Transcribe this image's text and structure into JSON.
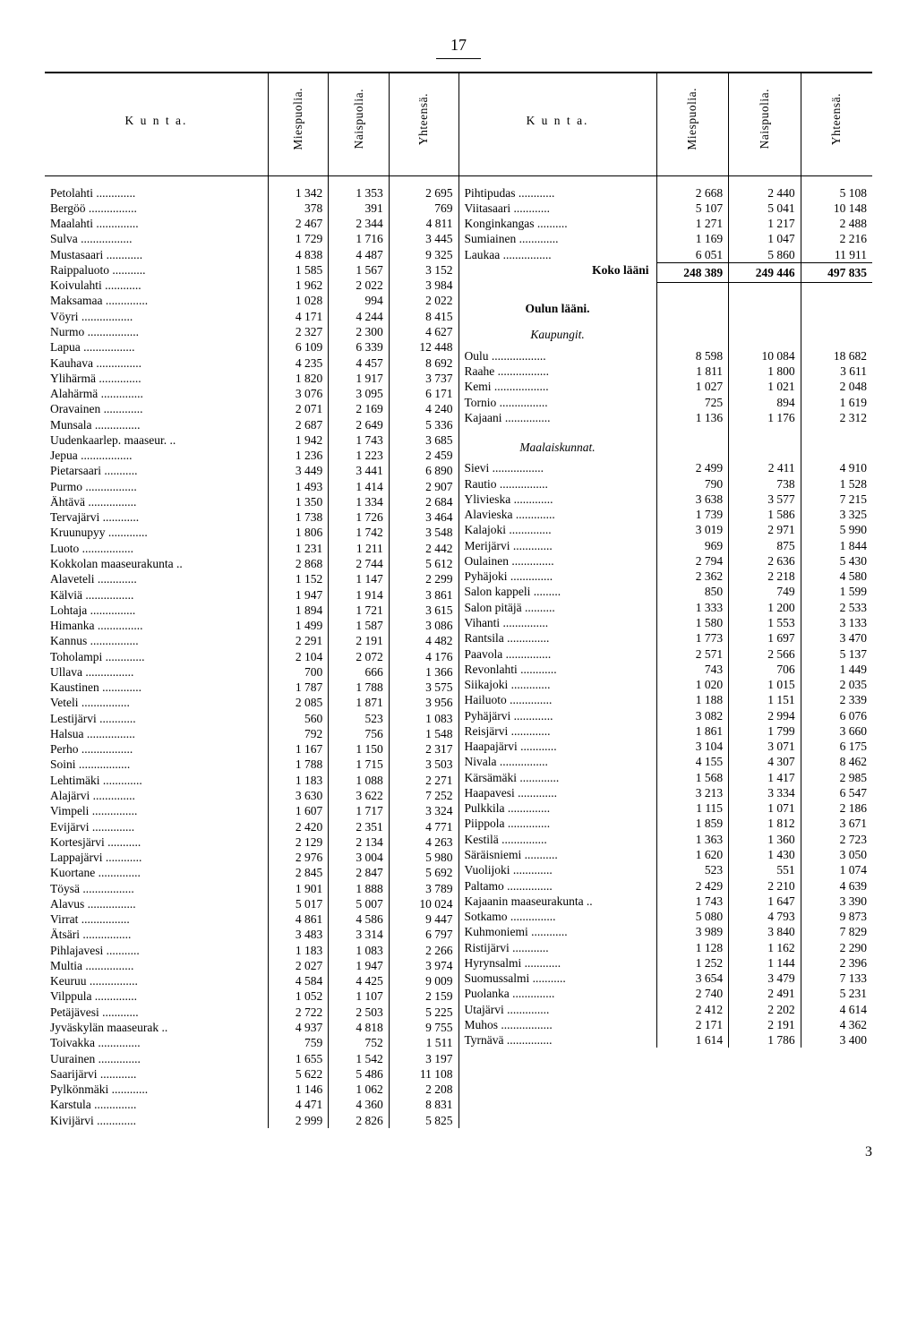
{
  "page_number": "17",
  "footer_number": "3",
  "headers": {
    "kunta": "K u n t a.",
    "mies": "Miespuolia.",
    "nais": "Naispuolia.",
    "yht": "Yhteensä."
  },
  "labels": {
    "koko_laani": "Koko lääni",
    "oulun_laani": "Oulun lääni.",
    "kaupungit": "Kaupungit.",
    "maalaiskunnat": "Maalaiskunnat."
  },
  "left": [
    {
      "n": "Petolahti",
      "m": "1 342",
      "f": "1 353",
      "t": "2 695"
    },
    {
      "n": "Bergöö",
      "m": "378",
      "f": "391",
      "t": "769"
    },
    {
      "n": "Maalahti",
      "m": "2 467",
      "f": "2 344",
      "t": "4 811"
    },
    {
      "n": "Sulva",
      "m": "1 729",
      "f": "1 716",
      "t": "3 445"
    },
    {
      "n": "Mustasaari",
      "m": "4 838",
      "f": "4 487",
      "t": "9 325"
    },
    {
      "n": "Raippaluoto",
      "m": "1 585",
      "f": "1 567",
      "t": "3 152"
    },
    {
      "n": "Koivulahti",
      "m": "1 962",
      "f": "2 022",
      "t": "3 984"
    },
    {
      "n": "Maksamaa",
      "m": "1 028",
      "f": "994",
      "t": "2 022"
    },
    {
      "n": "Vöyri",
      "m": "4 171",
      "f": "4 244",
      "t": "8 415"
    },
    {
      "n": "Nurmo",
      "m": "2 327",
      "f": "2 300",
      "t": "4 627"
    },
    {
      "n": "Lapua",
      "m": "6 109",
      "f": "6 339",
      "t": "12 448"
    },
    {
      "n": "Kauhava",
      "m": "4 235",
      "f": "4 457",
      "t": "8 692"
    },
    {
      "n": "Ylihärmä",
      "m": "1 820",
      "f": "1 917",
      "t": "3 737"
    },
    {
      "n": "Alahärmä",
      "m": "3 076",
      "f": "3 095",
      "t": "6 171"
    },
    {
      "n": "Oravainen",
      "m": "2 071",
      "f": "2 169",
      "t": "4 240"
    },
    {
      "n": "Munsala",
      "m": "2 687",
      "f": "2 649",
      "t": "5 336"
    },
    {
      "n": "Uudenkaarlep. maaseur.",
      "m": "1 942",
      "f": "1 743",
      "t": "3 685"
    },
    {
      "n": "Jepua",
      "m": "1 236",
      "f": "1 223",
      "t": "2 459"
    },
    {
      "n": "Pietarsaari",
      "m": "3 449",
      "f": "3 441",
      "t": "6 890"
    },
    {
      "n": "Purmo",
      "m": "1 493",
      "f": "1 414",
      "t": "2 907"
    },
    {
      "n": "Ähtävä",
      "m": "1 350",
      "f": "1 334",
      "t": "2 684"
    },
    {
      "n": "Tervajärvi",
      "m": "1 738",
      "f": "1 726",
      "t": "3 464"
    },
    {
      "n": "Kruunupyy",
      "m": "1 806",
      "f": "1 742",
      "t": "3 548"
    },
    {
      "n": "Luoto",
      "m": "1 231",
      "f": "1 211",
      "t": "2 442"
    },
    {
      "n": "Kokkolan maaseurakunta",
      "m": "2 868",
      "f": "2 744",
      "t": "5 612"
    },
    {
      "n": "Alaveteli",
      "m": "1 152",
      "f": "1 147",
      "t": "2 299"
    },
    {
      "n": "Kälviä",
      "m": "1 947",
      "f": "1 914",
      "t": "3 861"
    },
    {
      "n": "Lohtaja",
      "m": "1 894",
      "f": "1 721",
      "t": "3 615"
    },
    {
      "n": "Himanka",
      "m": "1 499",
      "f": "1 587",
      "t": "3 086"
    },
    {
      "n": "Kannus",
      "m": "2 291",
      "f": "2 191",
      "t": "4 482"
    },
    {
      "n": "Toholampi",
      "m": "2 104",
      "f": "2 072",
      "t": "4 176"
    },
    {
      "n": "Ullava",
      "m": "700",
      "f": "666",
      "t": "1 366"
    },
    {
      "n": "Kaustinen",
      "m": "1 787",
      "f": "1 788",
      "t": "3 575"
    },
    {
      "n": "Veteli",
      "m": "2 085",
      "f": "1 871",
      "t": "3 956"
    },
    {
      "n": "Lestijärvi",
      "m": "560",
      "f": "523",
      "t": "1 083"
    },
    {
      "n": "Halsua",
      "m": "792",
      "f": "756",
      "t": "1 548"
    },
    {
      "n": "Perho",
      "m": "1 167",
      "f": "1 150",
      "t": "2 317"
    },
    {
      "n": "Soini",
      "m": "1 788",
      "f": "1 715",
      "t": "3 503"
    },
    {
      "n": "Lehtimäki",
      "m": "1 183",
      "f": "1 088",
      "t": "2 271"
    },
    {
      "n": "Alajärvi",
      "m": "3 630",
      "f": "3 622",
      "t": "7 252"
    },
    {
      "n": "Vimpeli",
      "m": "1 607",
      "f": "1 717",
      "t": "3 324"
    },
    {
      "n": "Evijärvi",
      "m": "2 420",
      "f": "2 351",
      "t": "4 771"
    },
    {
      "n": "Kortesjärvi",
      "m": "2 129",
      "f": "2 134",
      "t": "4 263"
    },
    {
      "n": "Lappajärvi",
      "m": "2 976",
      "f": "3 004",
      "t": "5 980"
    },
    {
      "n": "Kuortane",
      "m": "2 845",
      "f": "2 847",
      "t": "5 692"
    },
    {
      "n": "Töysä",
      "m": "1 901",
      "f": "1 888",
      "t": "3 789"
    },
    {
      "n": "Alavus",
      "m": "5 017",
      "f": "5 007",
      "t": "10 024"
    },
    {
      "n": "Virrat",
      "m": "4 861",
      "f": "4 586",
      "t": "9 447"
    },
    {
      "n": "Ätsäri",
      "m": "3 483",
      "f": "3 314",
      "t": "6 797"
    },
    {
      "n": "Pihlajavesi",
      "m": "1 183",
      "f": "1 083",
      "t": "2 266"
    },
    {
      "n": "Multia",
      "m": "2 027",
      "f": "1 947",
      "t": "3 974"
    },
    {
      "n": "Keuruu",
      "m": "4 584",
      "f": "4 425",
      "t": "9 009"
    },
    {
      "n": "Vilppula",
      "m": "1 052",
      "f": "1 107",
      "t": "2 159"
    },
    {
      "n": "Petäjävesi",
      "m": "2 722",
      "f": "2 503",
      "t": "5 225"
    },
    {
      "n": "Jyväskylän maaseurak",
      "m": "4 937",
      "f": "4 818",
      "t": "9 755"
    },
    {
      "n": "Toivakka",
      "m": "759",
      "f": "752",
      "t": "1 511"
    },
    {
      "n": "Uurainen",
      "m": "1 655",
      "f": "1 542",
      "t": "3 197"
    },
    {
      "n": "Saarijärvi",
      "m": "5 622",
      "f": "5 486",
      "t": "11 108"
    },
    {
      "n": "Pylkönmäki",
      "m": "1 146",
      "f": "1 062",
      "t": "2 208"
    },
    {
      "n": "Karstula",
      "m": "4 471",
      "f": "4 360",
      "t": "8 831"
    },
    {
      "n": "Kivijärvi",
      "m": "2 999",
      "f": "2 826",
      "t": "5 825"
    }
  ],
  "right_pre": [
    {
      "n": "Pihtipudas",
      "m": "2 668",
      "f": "2 440",
      "t": "5 108"
    },
    {
      "n": "Viitasaari",
      "m": "5 107",
      "f": "5 041",
      "t": "10 148"
    },
    {
      "n": "Konginkangas",
      "m": "1 271",
      "f": "1 217",
      "t": "2 488"
    },
    {
      "n": "Sumiainen",
      "m": "1 169",
      "f": "1 047",
      "t": "2 216"
    },
    {
      "n": "Laukaa",
      "m": "6 051",
      "f": "5 860",
      "t": "11 911"
    }
  ],
  "right_total": {
    "n": "Koko lääni",
    "m": "248 389",
    "f": "249 446",
    "t": "497 835"
  },
  "right_cities": [
    {
      "n": "Oulu",
      "m": "8 598",
      "f": "10 084",
      "t": "18 682"
    },
    {
      "n": "Raahe",
      "m": "1 811",
      "f": "1 800",
      "t": "3 611"
    },
    {
      "n": "Kemi",
      "m": "1 027",
      "f": "1 021",
      "t": "2 048"
    },
    {
      "n": "Tornio",
      "m": "725",
      "f": "894",
      "t": "1 619"
    },
    {
      "n": "Kajaani",
      "m": "1 136",
      "f": "1 176",
      "t": "2 312"
    }
  ],
  "right_rural": [
    {
      "n": "Sievi",
      "m": "2 499",
      "f": "2 411",
      "t": "4 910"
    },
    {
      "n": "Rautio",
      "m": "790",
      "f": "738",
      "t": "1 528"
    },
    {
      "n": "Ylivieska",
      "m": "3 638",
      "f": "3 577",
      "t": "7 215"
    },
    {
      "n": "Alavieska",
      "m": "1 739",
      "f": "1 586",
      "t": "3 325"
    },
    {
      "n": "Kalajoki",
      "m": "3 019",
      "f": "2 971",
      "t": "5 990"
    },
    {
      "n": "Merijärvi",
      "m": "969",
      "f": "875",
      "t": "1 844"
    },
    {
      "n": "Oulainen",
      "m": "2 794",
      "f": "2 636",
      "t": "5 430"
    },
    {
      "n": "Pyhäjoki",
      "m": "2 362",
      "f": "2 218",
      "t": "4 580"
    },
    {
      "n": "Salon kappeli",
      "m": "850",
      "f": "749",
      "t": "1 599"
    },
    {
      "n": "Salon pitäjä",
      "m": "1 333",
      "f": "1 200",
      "t": "2 533"
    },
    {
      "n": "Vihanti",
      "m": "1 580",
      "f": "1 553",
      "t": "3 133"
    },
    {
      "n": "Rantsila",
      "m": "1 773",
      "f": "1 697",
      "t": "3 470"
    },
    {
      "n": "Paavola",
      "m": "2 571",
      "f": "2 566",
      "t": "5 137"
    },
    {
      "n": "Revonlahti",
      "m": "743",
      "f": "706",
      "t": "1 449"
    },
    {
      "n": "Siikajoki",
      "m": "1 020",
      "f": "1 015",
      "t": "2 035"
    },
    {
      "n": "Hailuoto",
      "m": "1 188",
      "f": "1 151",
      "t": "2 339"
    },
    {
      "n": "Pyhäjärvi",
      "m": "3 082",
      "f": "2 994",
      "t": "6 076"
    },
    {
      "n": "Reisjärvi",
      "m": "1 861",
      "f": "1 799",
      "t": "3 660"
    },
    {
      "n": "Haapajärvi",
      "m": "3 104",
      "f": "3 071",
      "t": "6 175"
    },
    {
      "n": "Nivala",
      "m": "4 155",
      "f": "4 307",
      "t": "8 462"
    },
    {
      "n": "Kärsämäki",
      "m": "1 568",
      "f": "1 417",
      "t": "2 985"
    },
    {
      "n": "Haapavesi",
      "m": "3 213",
      "f": "3 334",
      "t": "6 547"
    },
    {
      "n": "Pulkkila",
      "m": "1 115",
      "f": "1 071",
      "t": "2 186"
    },
    {
      "n": "Piippola",
      "m": "1 859",
      "f": "1 812",
      "t": "3 671"
    },
    {
      "n": "Kestilä",
      "m": "1 363",
      "f": "1 360",
      "t": "2 723"
    },
    {
      "n": "Säräisniemi",
      "m": "1 620",
      "f": "1 430",
      "t": "3 050"
    },
    {
      "n": "Vuolijoki",
      "m": "523",
      "f": "551",
      "t": "1 074"
    },
    {
      "n": "Paltamo",
      "m": "2 429",
      "f": "2 210",
      "t": "4 639"
    },
    {
      "n": "Kajaanin maaseurakunta",
      "m": "1 743",
      "f": "1 647",
      "t": "3 390"
    },
    {
      "n": "Sotkamo",
      "m": "5 080",
      "f": "4 793",
      "t": "9 873"
    },
    {
      "n": "Kuhmoniemi",
      "m": "3 989",
      "f": "3 840",
      "t": "7 829"
    },
    {
      "n": "Ristijärvi",
      "m": "1 128",
      "f": "1 162",
      "t": "2 290"
    },
    {
      "n": "Hyrynsalmi",
      "m": "1 252",
      "f": "1 144",
      "t": "2 396"
    },
    {
      "n": "Suomussalmi",
      "m": "3 654",
      "f": "3 479",
      "t": "7 133"
    },
    {
      "n": "Puolanka",
      "m": "2 740",
      "f": "2 491",
      "t": "5 231"
    },
    {
      "n": "Utajärvi",
      "m": "2 412",
      "f": "2 202",
      "t": "4 614"
    },
    {
      "n": "Muhos",
      "m": "2 171",
      "f": "2 191",
      "t": "4 362"
    },
    {
      "n": "Tyrnävä",
      "m": "1 614",
      "f": "1 786",
      "t": "3 400"
    }
  ]
}
